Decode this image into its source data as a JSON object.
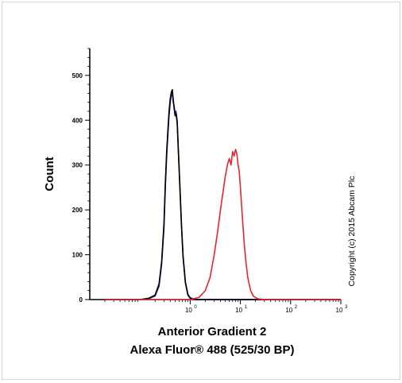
{
  "chart_data": {
    "type": "line",
    "xlabel": "Anterior Gradient 2",
    "xlabel_2": "Alexa Fluor® 488 (525/30 BP)",
    "ylabel": "Count",
    "copyright": "Copyright (c) 2015 Abcam Plc",
    "x_scale": "log",
    "xlim": [
      0.01,
      1000
    ],
    "ylim": [
      0,
      560
    ],
    "y_ticks": [
      "0",
      "100",
      "200",
      "300",
      "400",
      "500"
    ],
    "x_ticks": [
      {
        "base": "10",
        "exp": "0"
      },
      {
        "base": "10",
        "exp": "1"
      },
      {
        "base": "10",
        "exp": "2"
      },
      {
        "base": "10",
        "exp": "3"
      }
    ],
    "grid": false,
    "series": [
      {
        "color": "#2b2bd6",
        "x": [
          0.02,
          0.1,
          0.15,
          0.2,
          0.24,
          0.27,
          0.3,
          0.32,
          0.34,
          0.36,
          0.38,
          0.4,
          0.42,
          0.44,
          0.46,
          0.48,
          0.5,
          0.52,
          0.55,
          0.58,
          0.62,
          0.67,
          0.72,
          0.8,
          0.9,
          1.0,
          1.3,
          5,
          50,
          1000
        ],
        "y": [
          0,
          0,
          2,
          8,
          30,
          80,
          160,
          250,
          320,
          370,
          410,
          440,
          455,
          460,
          440,
          430,
          415,
          420,
          400,
          340,
          260,
          170,
          100,
          40,
          12,
          4,
          0,
          0,
          0,
          0
        ]
      },
      {
        "color": "#000000",
        "x": [
          0.02,
          0.1,
          0.15,
          0.2,
          0.24,
          0.27,
          0.3,
          0.32,
          0.34,
          0.36,
          0.38,
          0.4,
          0.42,
          0.44,
          0.46,
          0.48,
          0.5,
          0.52,
          0.55,
          0.58,
          0.62,
          0.67,
          0.72,
          0.8,
          0.9,
          1.0,
          1.3,
          5,
          50,
          1000
        ],
        "y": [
          0,
          0,
          3,
          10,
          35,
          85,
          170,
          260,
          330,
          380,
          420,
          448,
          462,
          468,
          445,
          425,
          410,
          415,
          395,
          335,
          255,
          165,
          95,
          38,
          10,
          3,
          0,
          0,
          0,
          0
        ]
      },
      {
        "color": "#e8262c",
        "x": [
          0.02,
          1.0,
          1.5,
          2.0,
          2.5,
          3.0,
          3.5,
          4.0,
          4.5,
          5.0,
          5.5,
          6.0,
          6.5,
          7.0,
          7.5,
          8.0,
          8.5,
          9.0,
          9.5,
          10.0,
          11.0,
          12.0,
          13.0,
          14.0,
          16.0,
          18.0,
          22.0,
          30.0,
          60,
          1000
        ],
        "y": [
          0,
          0,
          5,
          20,
          50,
          100,
          150,
          200,
          240,
          275,
          300,
          315,
          300,
          330,
          320,
          335,
          325,
          300,
          285,
          250,
          180,
          120,
          80,
          50,
          20,
          8,
          2,
          0,
          0,
          0
        ]
      }
    ]
  }
}
